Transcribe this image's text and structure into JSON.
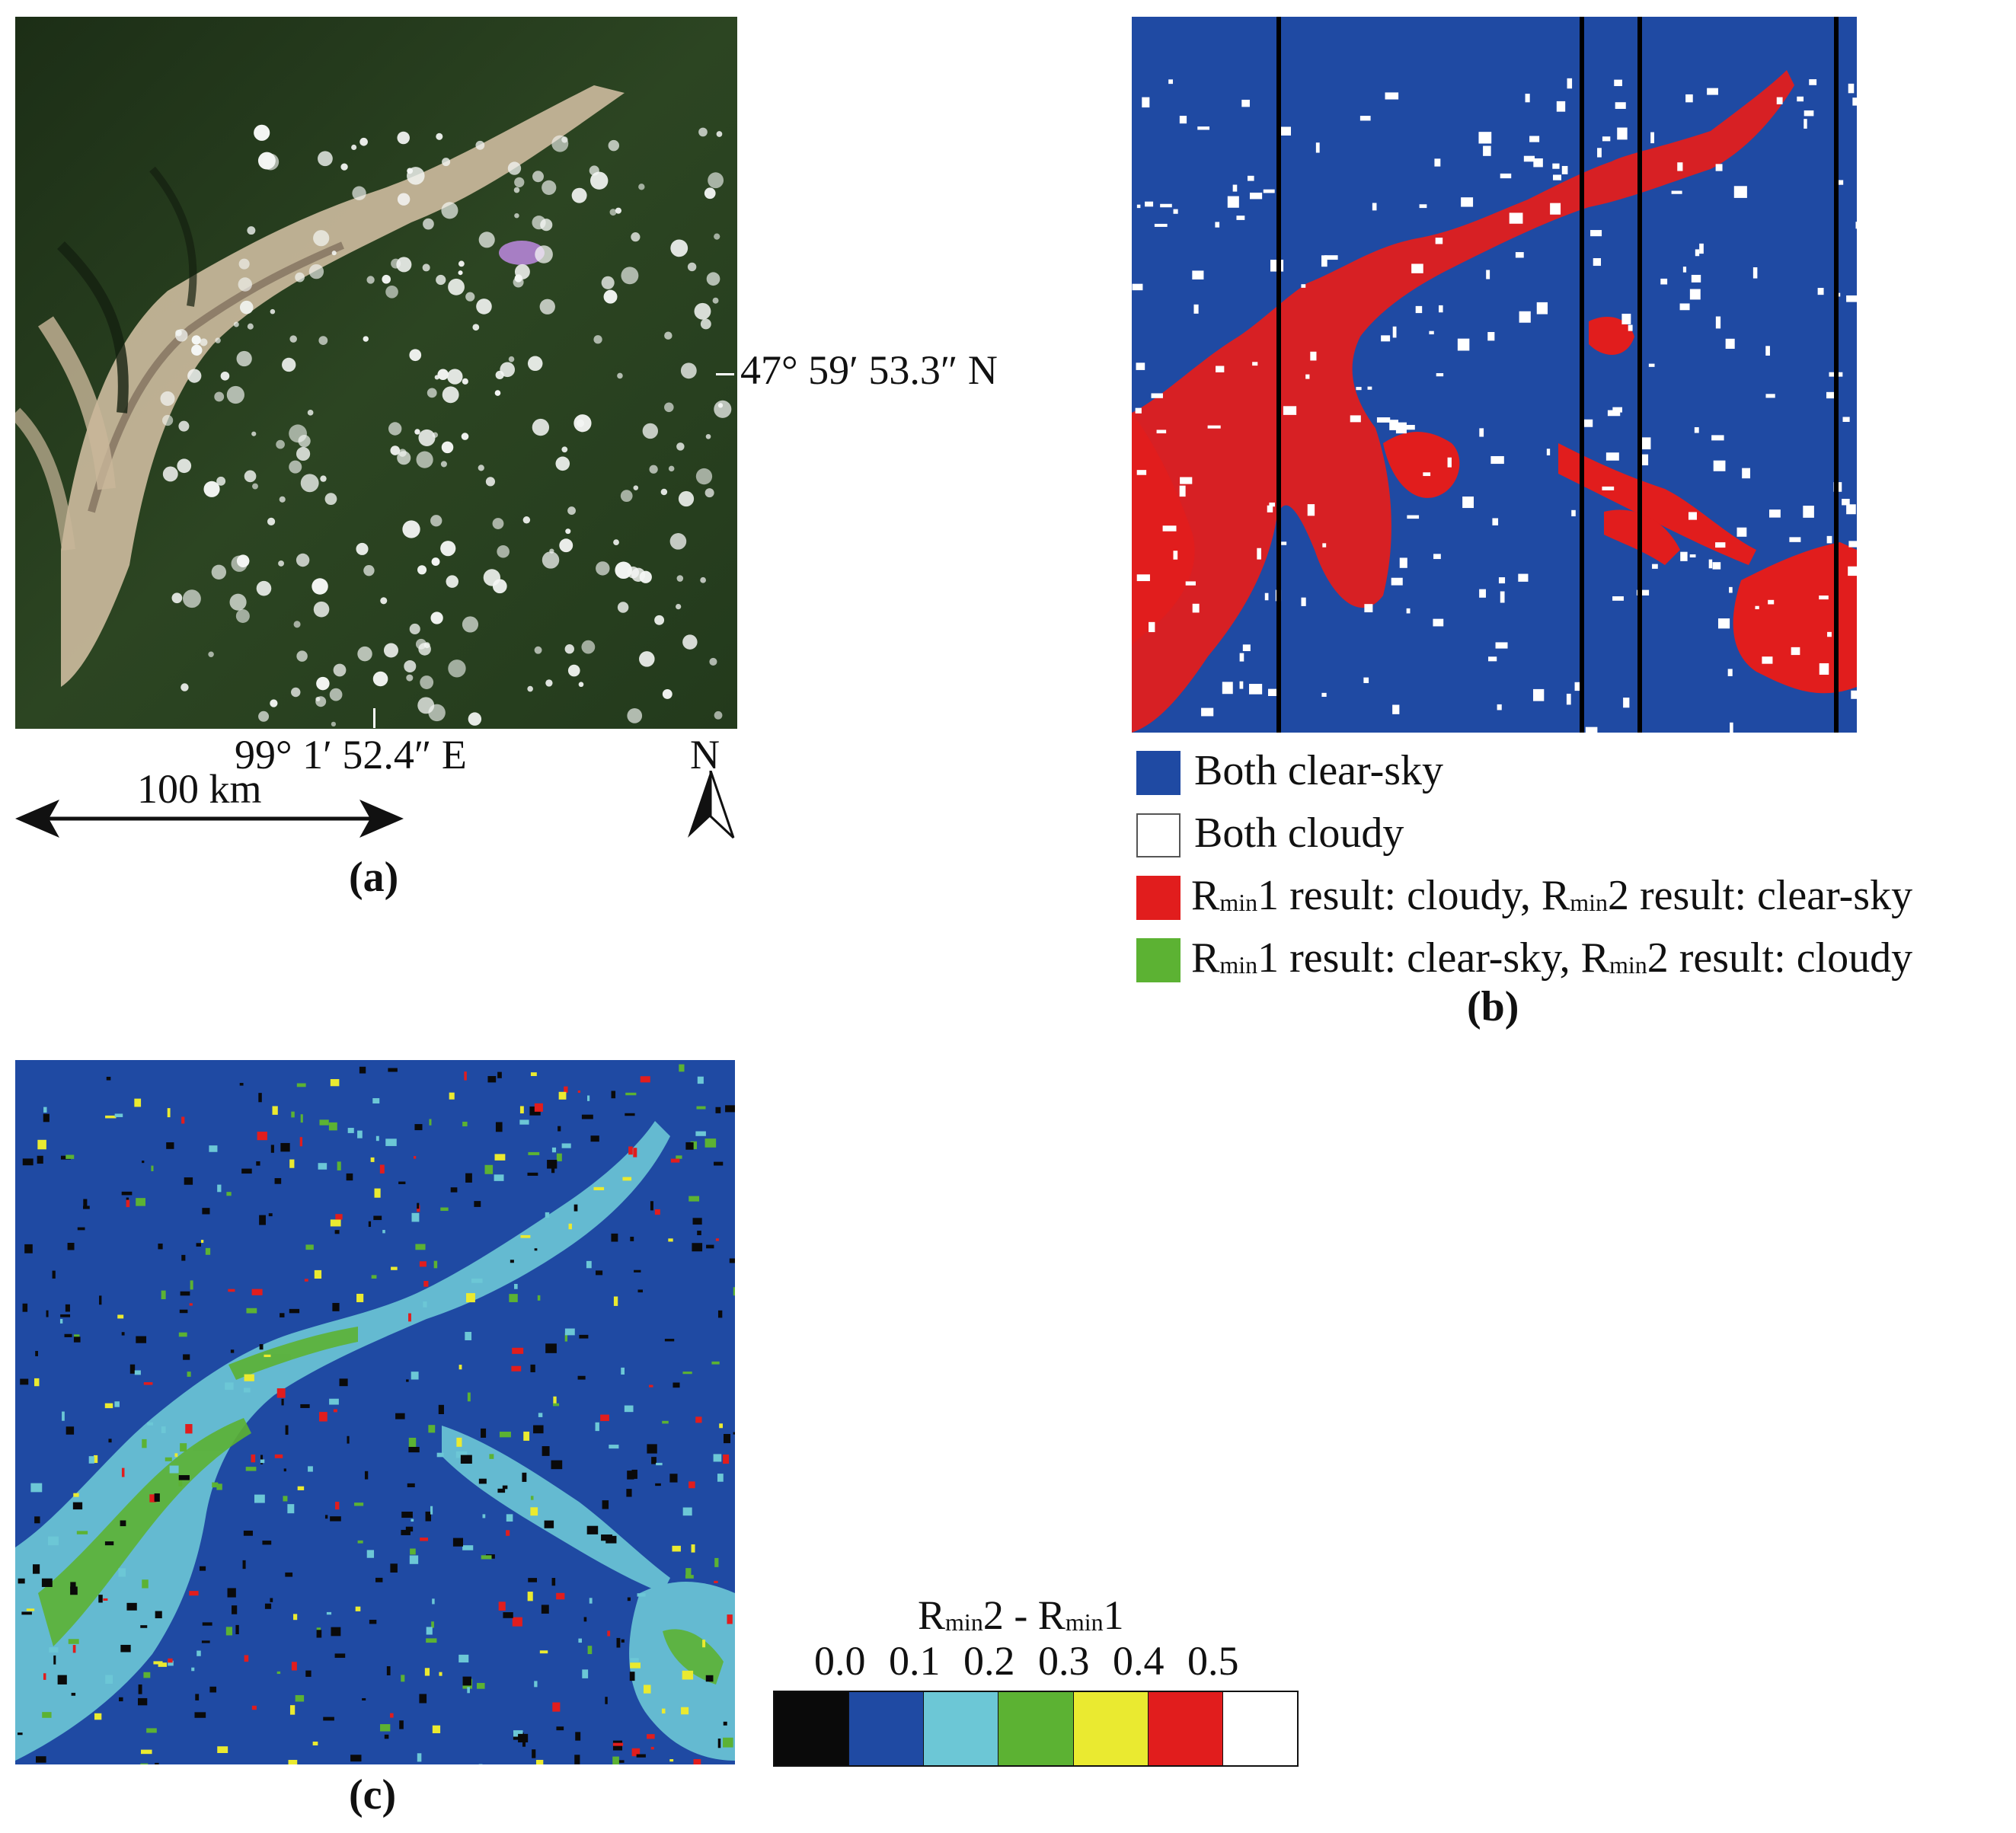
{
  "panel_a": {
    "label": "(a)",
    "latitude_label": "47° 59′ 53.3″ N",
    "longitude_label": "99° 1′ 52.4″ E",
    "scale_bar_label": "100 km",
    "north_label": "N",
    "colors": {
      "forest": "#24381c",
      "snow": "#d9c9b0",
      "cloud": "#f4f6f4",
      "lake": "#a77ec4"
    }
  },
  "panel_b": {
    "label": "(b)",
    "legend": [
      {
        "text": "Both clear-sky",
        "color": "#1f4aa3"
      },
      {
        "text": "Both cloudy",
        "color": "#ffffff"
      },
      {
        "r": "R",
        "sub": "min",
        "t1": "1 result: cloudy, ",
        "r2": "R",
        "sub2": "min",
        "t2": "2 result: clear-sky",
        "color": "#e11d1d"
      },
      {
        "r": "R",
        "sub": "min",
        "t1": "1 result: clear-sky, ",
        "r2": "R",
        "sub2": "min",
        "t2": "2 result: cloudy",
        "color": "#5cb233"
      }
    ]
  },
  "panel_c": {
    "label": "(c)",
    "colorbar_title_r1": "R",
    "colorbar_title_sub1": "min",
    "colorbar_title_mid": "2 - ",
    "colorbar_title_r2": "R",
    "colorbar_title_sub2": "min",
    "colorbar_title_end": "1",
    "ticks": [
      "0.0",
      "0.1",
      "0.2",
      "0.3",
      "0.4",
      "0.5"
    ],
    "colors": [
      "#0a0a0a",
      "#1f4aa3",
      "#6cc7d6",
      "#5cb233",
      "#eaea30",
      "#e11d1d",
      "#ffffff"
    ]
  }
}
